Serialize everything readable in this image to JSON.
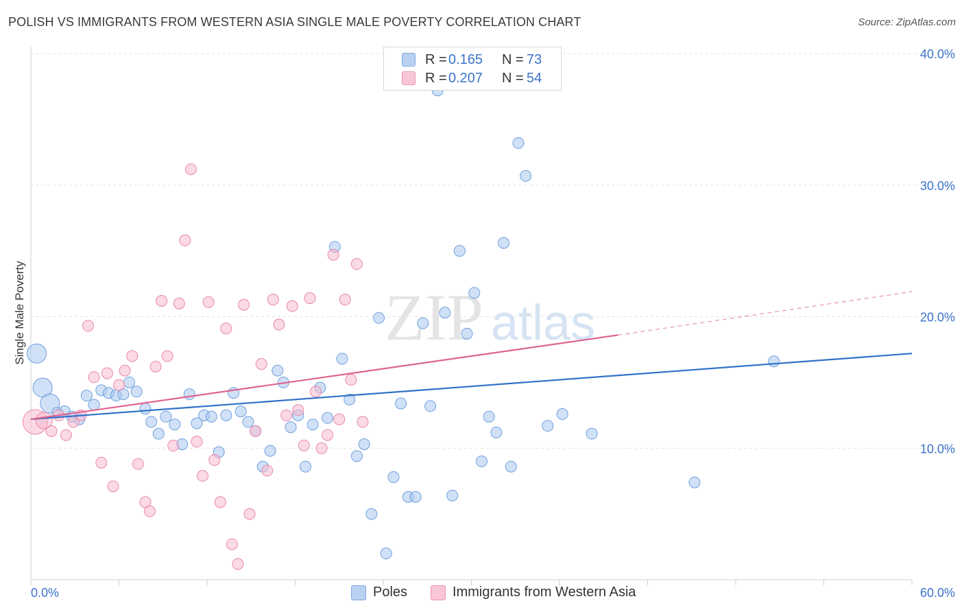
{
  "title": "POLISH VS IMMIGRANTS FROM WESTERN ASIA SINGLE MALE POVERTY CORRELATION CHART",
  "source": "Source: ZipAtlas.com",
  "watermark": {
    "zip": "ZIP",
    "atlas": "atlas"
  },
  "legend": {
    "series1": {
      "r_label": "R =",
      "r_value": "0.165",
      "n_label": "N =",
      "n_value": "73"
    },
    "series2": {
      "r_label": "R =",
      "r_value": "0.207",
      "n_label": "N =",
      "n_value": "54"
    }
  },
  "chart_data": {
    "type": "scatter",
    "title": "POLISH VS IMMIGRANTS FROM WESTERN ASIA SINGLE MALE POVERTY CORRELATION CHART",
    "xlabel": "",
    "ylabel": "Single Male Poverty",
    "xlim": [
      0,
      60
    ],
    "ylim": [
      0,
      40
    ],
    "x_tick_labels": [
      "0.0%",
      "60.0%"
    ],
    "y_ticks": [
      10,
      20,
      30,
      40
    ],
    "y_tick_labels": [
      "10.0%",
      "20.0%",
      "30.0%",
      "40.0%"
    ],
    "grid": true,
    "legend_placement": "top-center",
    "series": [
      {
        "name": "Poles",
        "color": "#a9c8f0",
        "stroke": "#6f9fdc",
        "line_color": "#2f72c8",
        "trend": {
          "x": [
            0,
            60
          ],
          "y": [
            12.2,
            17.2
          ]
        },
        "points": [
          [
            0.4,
            17.2
          ],
          [
            0.8,
            14.6
          ],
          [
            1.3,
            13.4
          ],
          [
            1.8,
            12.7
          ],
          [
            2.3,
            12.8
          ],
          [
            2.8,
            12.4
          ],
          [
            3.3,
            12.2
          ],
          [
            3.8,
            14.0
          ],
          [
            4.3,
            13.3
          ],
          [
            4.8,
            14.4
          ],
          [
            5.3,
            14.2
          ],
          [
            5.8,
            14.0
          ],
          [
            6.3,
            14.1
          ],
          [
            6.7,
            15.0
          ],
          [
            7.2,
            14.3
          ],
          [
            7.8,
            13.0
          ],
          [
            8.2,
            12.0
          ],
          [
            8.7,
            11.1
          ],
          [
            9.2,
            12.4
          ],
          [
            9.8,
            11.8
          ],
          [
            10.3,
            10.3
          ],
          [
            10.8,
            14.1
          ],
          [
            11.3,
            11.9
          ],
          [
            11.8,
            12.5
          ],
          [
            12.3,
            12.4
          ],
          [
            12.8,
            9.7
          ],
          [
            13.3,
            12.5
          ],
          [
            13.8,
            14.2
          ],
          [
            14.3,
            12.8
          ],
          [
            14.8,
            12.0
          ],
          [
            15.3,
            11.3
          ],
          [
            15.8,
            8.6
          ],
          [
            16.3,
            9.8
          ],
          [
            16.8,
            15.9
          ],
          [
            17.2,
            15.0
          ],
          [
            17.7,
            11.6
          ],
          [
            18.2,
            12.5
          ],
          [
            18.7,
            8.6
          ],
          [
            19.2,
            11.8
          ],
          [
            19.7,
            14.6
          ],
          [
            20.2,
            12.3
          ],
          [
            20.7,
            25.3
          ],
          [
            21.2,
            16.8
          ],
          [
            21.7,
            13.7
          ],
          [
            22.2,
            9.4
          ],
          [
            22.7,
            10.3
          ],
          [
            23.2,
            5.0
          ],
          [
            23.7,
            19.9
          ],
          [
            24.2,
            2.0
          ],
          [
            24.7,
            7.8
          ],
          [
            25.2,
            13.4
          ],
          [
            25.7,
            6.3
          ],
          [
            26.2,
            6.3
          ],
          [
            26.7,
            19.5
          ],
          [
            27.2,
            13.2
          ],
          [
            27.7,
            37.2
          ],
          [
            28.2,
            20.3
          ],
          [
            28.7,
            6.4
          ],
          [
            29.2,
            25.0
          ],
          [
            29.7,
            18.7
          ],
          [
            30.2,
            21.8
          ],
          [
            30.7,
            9.0
          ],
          [
            31.2,
            12.4
          ],
          [
            31.7,
            11.2
          ],
          [
            32.2,
            25.6
          ],
          [
            32.7,
            8.6
          ],
          [
            33.2,
            33.2
          ],
          [
            33.7,
            30.7
          ],
          [
            35.2,
            11.7
          ],
          [
            36.2,
            12.6
          ],
          [
            38.2,
            11.1
          ],
          [
            45.2,
            7.4
          ],
          [
            50.6,
            16.6
          ]
        ],
        "sizes": [
          14,
          14,
          14,
          8,
          8,
          8,
          8,
          8,
          8,
          8,
          8,
          8,
          8,
          8,
          8,
          8,
          8,
          8,
          8,
          8,
          8,
          8,
          8,
          8,
          8,
          8,
          8,
          8,
          8,
          8,
          8,
          8,
          8,
          8,
          8,
          8,
          8,
          8,
          8,
          8,
          8,
          8,
          8,
          8,
          8,
          8,
          8,
          8,
          8,
          8,
          8,
          8,
          8,
          8,
          8,
          8,
          8,
          8,
          8,
          8,
          8,
          8,
          8,
          8,
          8,
          8,
          8,
          8,
          8,
          8,
          8,
          8,
          8
        ]
      },
      {
        "name": "Immigrants from Western Asia",
        "color": "#f7bcd0",
        "stroke": "#e887a8",
        "line_color": "#e0638f",
        "trend": {
          "x": [
            0,
            40
          ],
          "y": [
            12.2,
            18.6
          ],
          "dash_to": [
            60,
            21.9
          ]
        },
        "points": [
          [
            0.3,
            12.0
          ],
          [
            0.9,
            12.1
          ],
          [
            1.4,
            11.3
          ],
          [
            1.9,
            12.5
          ],
          [
            2.4,
            11.0
          ],
          [
            2.9,
            12.0
          ],
          [
            3.4,
            12.5
          ],
          [
            3.9,
            19.3
          ],
          [
            4.3,
            15.4
          ],
          [
            4.8,
            8.9
          ],
          [
            5.2,
            15.7
          ],
          [
            5.6,
            7.1
          ],
          [
            6.0,
            14.8
          ],
          [
            6.4,
            15.9
          ],
          [
            6.9,
            17.0
          ],
          [
            7.3,
            8.8
          ],
          [
            7.8,
            5.9
          ],
          [
            8.1,
            5.2
          ],
          [
            8.5,
            16.2
          ],
          [
            8.9,
            21.2
          ],
          [
            9.3,
            17.0
          ],
          [
            9.7,
            10.2
          ],
          [
            10.1,
            21.0
          ],
          [
            10.5,
            25.8
          ],
          [
            10.9,
            31.2
          ],
          [
            11.3,
            10.5
          ],
          [
            11.7,
            7.9
          ],
          [
            12.1,
            21.1
          ],
          [
            12.5,
            9.1
          ],
          [
            12.9,
            5.9
          ],
          [
            13.3,
            19.1
          ],
          [
            13.7,
            2.7
          ],
          [
            14.1,
            1.2
          ],
          [
            14.5,
            20.9
          ],
          [
            14.9,
            5.0
          ],
          [
            15.3,
            11.3
          ],
          [
            15.7,
            16.4
          ],
          [
            16.1,
            8.3
          ],
          [
            16.5,
            21.3
          ],
          [
            16.9,
            19.4
          ],
          [
            17.4,
            12.5
          ],
          [
            17.8,
            20.8
          ],
          [
            18.2,
            12.9
          ],
          [
            18.6,
            10.2
          ],
          [
            19.0,
            21.4
          ],
          [
            19.4,
            14.3
          ],
          [
            19.8,
            10.0
          ],
          [
            20.2,
            11.0
          ],
          [
            20.6,
            24.7
          ],
          [
            21.0,
            12.2
          ],
          [
            21.4,
            21.3
          ],
          [
            21.8,
            15.2
          ],
          [
            22.2,
            24.0
          ],
          [
            22.6,
            12.0
          ]
        ],
        "sizes": [
          18,
          12,
          8,
          8,
          8,
          8,
          8,
          8,
          8,
          8,
          8,
          8,
          8,
          8,
          8,
          8,
          8,
          8,
          8,
          8,
          8,
          8,
          8,
          8,
          8,
          8,
          8,
          8,
          8,
          8,
          8,
          8,
          8,
          8,
          8,
          8,
          8,
          8,
          8,
          8,
          8,
          8,
          8,
          8,
          8,
          8,
          8,
          8,
          8,
          8,
          8,
          8,
          8,
          8
        ]
      }
    ]
  }
}
